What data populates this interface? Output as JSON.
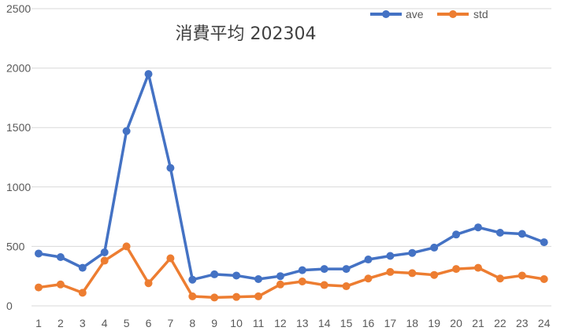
{
  "chart_data": {
    "type": "line",
    "title": "消費平均 202304",
    "xlabel": "",
    "ylabel": "",
    "categories": [
      "1",
      "2",
      "3",
      "4",
      "5",
      "6",
      "7",
      "8",
      "9",
      "10",
      "11",
      "12",
      "13",
      "14",
      "15",
      "16",
      "17",
      "18",
      "19",
      "20",
      "21",
      "22",
      "23",
      "24"
    ],
    "ylim": [
      0,
      2500
    ],
    "yticks": [
      0,
      500,
      1000,
      1500,
      2000,
      2500
    ],
    "grid": true,
    "legend_position": "top-right",
    "series": [
      {
        "name": "ave",
        "color": "#4472C4",
        "values": [
          440,
          410,
          320,
          450,
          1470,
          1950,
          1160,
          220,
          265,
          255,
          225,
          250,
          300,
          310,
          310,
          390,
          420,
          445,
          490,
          600,
          660,
          615,
          605,
          535
        ]
      },
      {
        "name": "std",
        "color": "#ED7D31",
        "values": [
          155,
          180,
          110,
          380,
          500,
          190,
          400,
          80,
          70,
          75,
          80,
          180,
          205,
          175,
          165,
          230,
          285,
          275,
          260,
          310,
          320,
          230,
          255,
          225
        ]
      }
    ]
  }
}
